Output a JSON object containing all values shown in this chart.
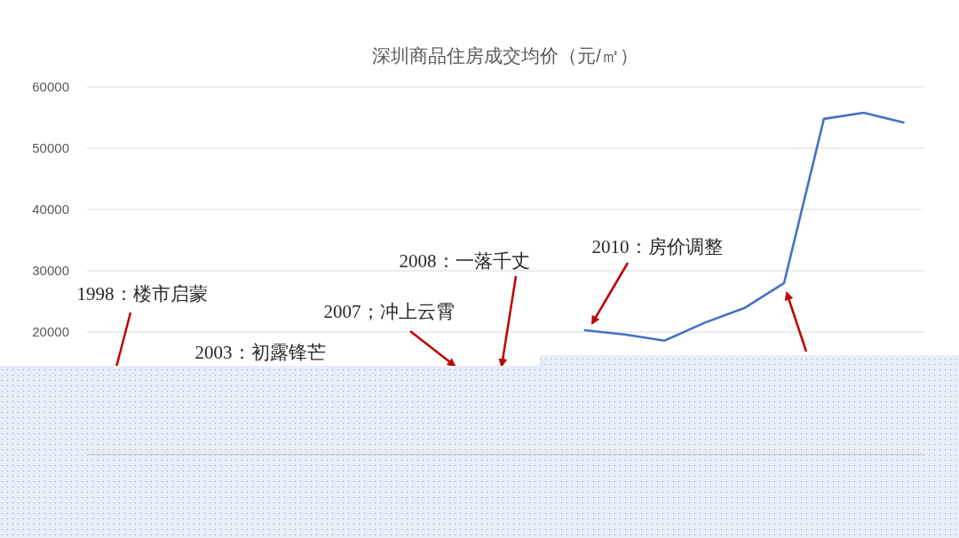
{
  "chart_data": {
    "type": "line",
    "title": "深圳商品住房成交均价（元/㎡）",
    "categories": [
      null,
      null,
      null,
      null,
      null,
      null,
      null,
      null,
      null,
      null,
      null,
      null,
      null,
      null,
      null,
      null,
      null,
      null,
      null,
      null,
      null
    ],
    "series": [
      {
        "color": "#4472c4",
        "values": [
          null,
          null,
          null,
          null,
          null,
          null,
          null,
          null,
          null,
          null,
          null,
          null,
          20300,
          19600,
          18600,
          21500,
          23900,
          28000,
          54800,
          55800,
          54200
        ]
      }
    ],
    "ylim": [
      0,
      60000
    ],
    "yticks": [
      20000,
      30000,
      40000,
      50000,
      60000
    ],
    "grid": "y",
    "annotations": [
      "1998：楼市启蒙",
      "2003：初露锋芒",
      "2007；冲上云霄",
      "2008：一落千丈",
      "2010：房价调整"
    ]
  }
}
